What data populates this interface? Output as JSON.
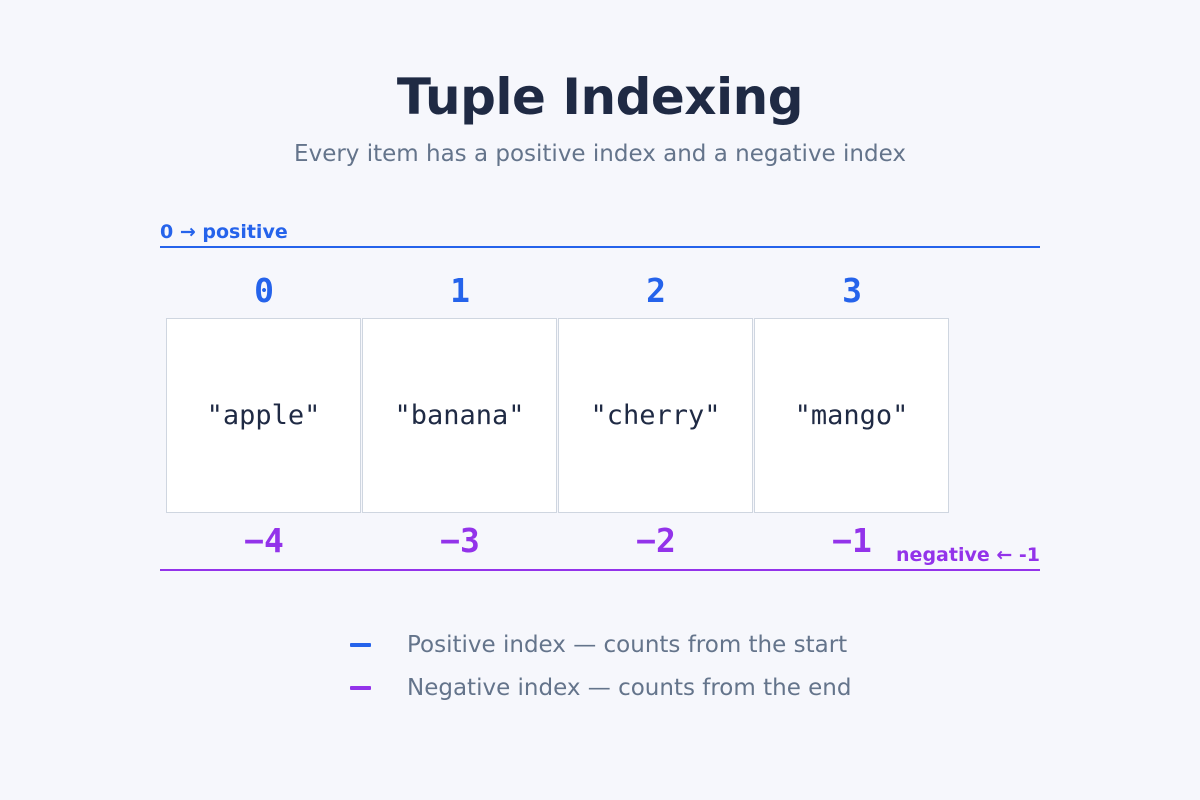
{
  "title": "Tuple Indexing",
  "subtitle": "Every item has a positive index and a negative index",
  "positive_caption": "0 → positive",
  "negative_caption": "negative ← -1",
  "colors": {
    "positive": "#2563eb",
    "negative": "#9333ea",
    "title": "#1f2a44",
    "muted": "#64748b",
    "background": "#f6f7fc"
  },
  "items": [
    {
      "value": "\"apple\"",
      "pos": "0",
      "neg": "−4"
    },
    {
      "value": "\"banana\"",
      "pos": "1",
      "neg": "−3"
    },
    {
      "value": "\"cherry\"",
      "pos": "2",
      "neg": "−2"
    },
    {
      "value": "\"mango\"",
      "pos": "3",
      "neg": "−1"
    }
  ],
  "legend": [
    {
      "label": "Positive index — counts from the start",
      "color": "#2563eb"
    },
    {
      "label": "Negative index — counts from the end",
      "color": "#9333ea"
    }
  ]
}
